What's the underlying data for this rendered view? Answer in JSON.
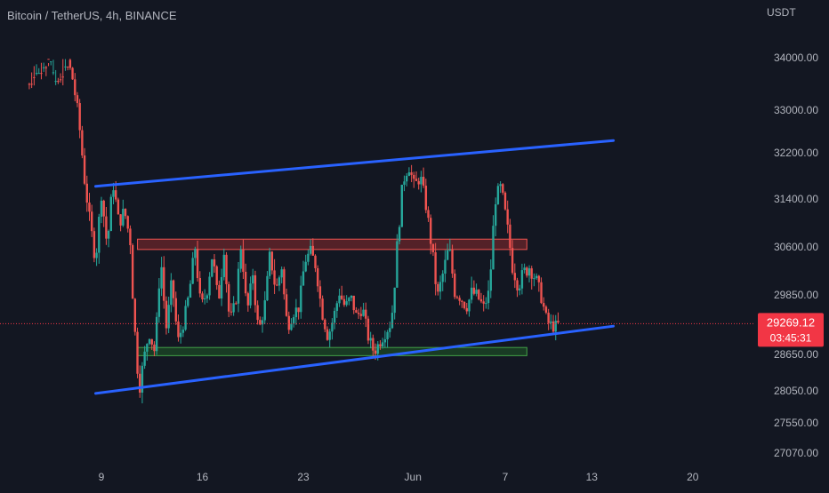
{
  "header": {
    "title": "Bitcoin / TetherUS, 4h, BINANCE",
    "currency": "USDT"
  },
  "price_tag": {
    "price": "29269.12",
    "countdown": "03:45:31"
  },
  "colors": {
    "background": "#131722",
    "text": "#b2b5be",
    "bull": "#26a69a",
    "bear": "#ef5350",
    "trendline": "#2962ff",
    "price_tag": "#f23645",
    "resistance_fill": "#8b2a2e",
    "support_fill": "#1f5a26"
  },
  "chart_data": {
    "type": "candlestick",
    "title": "Bitcoin / TetherUS, 4h, BINANCE",
    "y_axis": {
      "unit": "USDT",
      "ticks": [
        34000,
        33000,
        32200,
        31400,
        30600,
        29850,
        28650,
        28050,
        27550,
        27070
      ],
      "tick_labels": [
        "34000.00",
        "33000.00",
        "32200.00",
        "31400.00",
        "30600.00",
        "29850.00",
        "28650.00",
        "28050.00",
        "27550.00",
        "27070.00"
      ],
      "range": [
        26900,
        34600
      ]
    },
    "x_axis": {
      "ticks": [
        "9",
        "16",
        "23",
        "Jun",
        "7",
        "13",
        "20"
      ],
      "range_days": [
        3.8,
        51
      ]
    },
    "last_price": 29269.12,
    "trendlines": [
      {
        "name": "upper",
        "from": {
          "day": 8.6,
          "price": 31620
        },
        "to": {
          "day": 44.5,
          "price": 32430
        }
      },
      {
        "name": "lower",
        "from": {
          "day": 8.6,
          "price": 28010
        },
        "to": {
          "day": 44.5,
          "price": 29220
        }
      }
    ],
    "zones": [
      {
        "name": "resistance",
        "day_from": 11.5,
        "day_to": 38.5,
        "price_low": 30560,
        "price_high": 30730
      },
      {
        "name": "support",
        "day_from": 11.5,
        "day_to": 38.5,
        "price_low": 28630,
        "price_high": 28790
      }
    ],
    "candle_path": [
      [
        4.0,
        34500
      ],
      [
        4.8,
        34200
      ],
      [
        5.4,
        34100
      ],
      [
        6.0,
        34400
      ],
      [
        6.6,
        34000
      ],
      [
        7.0,
        33600
      ],
      [
        7.4,
        32900
      ],
      [
        7.8,
        31800
      ],
      [
        8.2,
        31000
      ],
      [
        8.6,
        30400
      ],
      [
        9.0,
        31500
      ],
      [
        9.4,
        30600
      ],
      [
        9.8,
        31700
      ],
      [
        10.2,
        31000
      ],
      [
        10.6,
        31200
      ],
      [
        11.0,
        30700
      ],
      [
        11.3,
        29200
      ],
      [
        11.6,
        28050
      ],
      [
        11.9,
        28500
      ],
      [
        12.3,
        29100
      ],
      [
        12.7,
        28700
      ],
      [
        13.1,
        30500
      ],
      [
        13.5,
        29200
      ],
      [
        13.9,
        30100
      ],
      [
        14.3,
        28900
      ],
      [
        14.7,
        29300
      ],
      [
        15.1,
        29900
      ],
      [
        15.5,
        30600
      ],
      [
        15.9,
        29600
      ],
      [
        16.3,
        29900
      ],
      [
        16.7,
        30500
      ],
      [
        17.1,
        29700
      ],
      [
        17.5,
        30600
      ],
      [
        17.9,
        29300
      ],
      [
        18.3,
        29700
      ],
      [
        18.7,
        30700
      ],
      [
        19.1,
        29500
      ],
      [
        19.5,
        30200
      ],
      [
        19.9,
        29100
      ],
      [
        20.3,
        29600
      ],
      [
        20.7,
        30500
      ],
      [
        21.1,
        29900
      ],
      [
        21.5,
        30300
      ],
      [
        21.9,
        29200
      ],
      [
        22.3,
        29500
      ],
      [
        22.7,
        29600
      ],
      [
        23.1,
        30400
      ],
      [
        23.5,
        30500
      ],
      [
        23.9,
        30300
      ],
      [
        24.3,
        29500
      ],
      [
        24.7,
        29000
      ],
      [
        25.1,
        29400
      ],
      [
        25.5,
        29900
      ],
      [
        25.9,
        29600
      ],
      [
        26.3,
        29800
      ],
      [
        26.7,
        29400
      ],
      [
        27.1,
        29600
      ],
      [
        27.5,
        29000
      ],
      [
        27.9,
        28700
      ],
      [
        28.3,
        28900
      ],
      [
        28.7,
        29100
      ],
      [
        29.1,
        29300
      ],
      [
        29.5,
        30600
      ],
      [
        29.9,
        31700
      ],
      [
        30.3,
        32000
      ],
      [
        30.7,
        31600
      ],
      [
        31.1,
        31800
      ],
      [
        31.5,
        31300
      ],
      [
        31.9,
        30600
      ],
      [
        32.3,
        29800
      ],
      [
        32.7,
        30200
      ],
      [
        33.1,
        30600
      ],
      [
        33.5,
        29900
      ],
      [
        33.9,
        29800
      ],
      [
        34.3,
        29600
      ],
      [
        34.7,
        29900
      ],
      [
        35.1,
        29800
      ],
      [
        35.5,
        29600
      ],
      [
        35.9,
        29900
      ],
      [
        36.3,
        31400
      ],
      [
        36.7,
        31600
      ],
      [
        37.1,
        31000
      ],
      [
        37.5,
        30300
      ],
      [
        37.9,
        30000
      ],
      [
        38.3,
        30200
      ],
      [
        38.7,
        30300
      ],
      [
        39.1,
        30100
      ],
      [
        39.5,
        29800
      ],
      [
        39.9,
        29300
      ],
      [
        40.4,
        29200
      ],
      [
        40.8,
        29270
      ]
    ]
  }
}
